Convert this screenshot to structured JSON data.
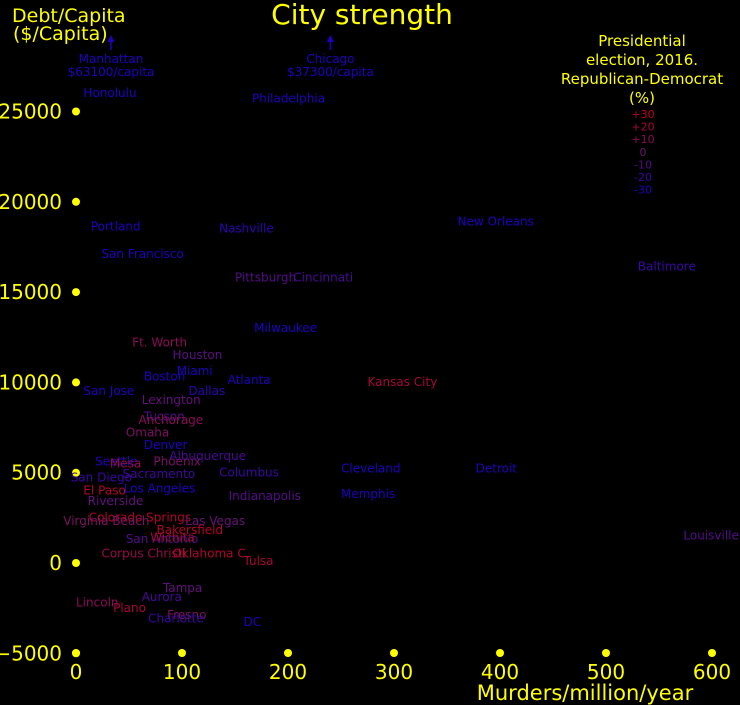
{
  "chart_data": {
    "type": "scatter",
    "title": "City strength",
    "xlabel": "Murders/million/year",
    "ylabel_lines": [
      "Debt/Capita",
      "($/Capita)"
    ],
    "xlim": [
      0,
      600
    ],
    "ylim": [
      -5000,
      27500
    ],
    "x_ticks": [
      0,
      100,
      200,
      300,
      400,
      500,
      600
    ],
    "y_ticks": [
      -5000,
      0,
      5000,
      10000,
      15000,
      20000,
      25000
    ],
    "grid": false,
    "legend": {
      "placement": "top-right",
      "title_lines": [
        "Presidential",
        "election, 2016.",
        "Republican-Democrat",
        "(%)"
      ],
      "entries": [
        {
          "label": "+30",
          "margin": 30
        },
        {
          "label": "+20",
          "margin": 20
        },
        {
          "label": "+10",
          "margin": 10
        },
        {
          "label": "0",
          "margin": 0
        },
        {
          "label": "-10",
          "margin": -10
        },
        {
          "label": "-20",
          "margin": -20
        },
        {
          "label": "-30",
          "margin": -30
        }
      ]
    },
    "offchart": [
      {
        "name": "Manhattan",
        "note": "$63100/capita",
        "x": 33
      },
      {
        "name": "Chicago",
        "note": "$37300/capita",
        "x": 240
      }
    ],
    "points": [
      {
        "name": "Honolulu",
        "x": 7,
        "y": 25800,
        "margin": -32
      },
      {
        "name": "Philadelphia",
        "x": 166,
        "y": 25500,
        "margin": -30
      },
      {
        "name": "Portland",
        "x": 14,
        "y": 18400,
        "margin": -38
      },
      {
        "name": "Nashville",
        "x": 135,
        "y": 18300,
        "margin": -25
      },
      {
        "name": "New Orleans",
        "x": 360,
        "y": 18700,
        "margin": -40
      },
      {
        "name": "San Francisco",
        "x": 24,
        "y": 16900,
        "margin": -40
      },
      {
        "name": "Pittsburgh",
        "x": 150,
        "y": 15600,
        "margin": -10
      },
      {
        "name": "Cincinnati",
        "x": 205,
        "y": 15600,
        "margin": -15
      },
      {
        "name": "Baltimore",
        "x": 530,
        "y": 16200,
        "margin": -20
      },
      {
        "name": "Milwaukee",
        "x": 168,
        "y": 12800,
        "margin": -38
      },
      {
        "name": "Ft. Worth",
        "x": 53,
        "y": 12000,
        "margin": 10
      },
      {
        "name": "Houston",
        "x": 91,
        "y": 11300,
        "margin": -8
      },
      {
        "name": "Miami",
        "x": 95,
        "y": 10400,
        "margin": -30
      },
      {
        "name": "Boston",
        "x": 64,
        "y": 10100,
        "margin": -35
      },
      {
        "name": "Atlanta",
        "x": 143,
        "y": 9900,
        "margin": -36
      },
      {
        "name": "San Jose",
        "x": 7,
        "y": 9300,
        "margin": -35
      },
      {
        "name": "Dallas",
        "x": 106,
        "y": 9300,
        "margin": -25
      },
      {
        "name": "Kansas City",
        "x": 275,
        "y": 9800,
        "margin": 20
      },
      {
        "name": "Lexington",
        "x": 62,
        "y": 8800,
        "margin": -5
      },
      {
        "name": "Tucson",
        "x": 64,
        "y": 7900,
        "margin": -10
      },
      {
        "name": "Anchorage",
        "x": 59,
        "y": 7700,
        "margin": 10
      },
      {
        "name": "Omaha",
        "x": 47,
        "y": 7000,
        "margin": 5
      },
      {
        "name": "Denver",
        "x": 64,
        "y": 6300,
        "margin": -30
      },
      {
        "name": "Albuquerque",
        "x": 88,
        "y": 5700,
        "margin": -15
      },
      {
        "name": "Phoenix",
        "x": 73,
        "y": 5400,
        "margin": 3
      },
      {
        "name": "Seattle",
        "x": 18,
        "y": 5400,
        "margin": -45
      },
      {
        "name": "Mesa",
        "x": 32,
        "y": 5300,
        "margin": 15
      },
      {
        "name": "Columbus",
        "x": 135,
        "y": 4800,
        "margin": -20
      },
      {
        "name": "Cleveland",
        "x": 250,
        "y": 5000,
        "margin": -32
      },
      {
        "name": "Detroit",
        "x": 377,
        "y": 5000,
        "margin": -35
      },
      {
        "name": "Sacramento",
        "x": 44,
        "y": 4700,
        "margin": -18
      },
      {
        "name": "San Diego",
        "x": -5,
        "y": 4500,
        "margin": -20
      },
      {
        "name": "Los Angeles",
        "x": 45,
        "y": 3900,
        "margin": -35
      },
      {
        "name": "El Paso",
        "x": 7,
        "y": 3800,
        "margin": 25
      },
      {
        "name": "Indianapolis",
        "x": 144,
        "y": 3500,
        "margin": -10
      },
      {
        "name": "Memphis",
        "x": 250,
        "y": 3600,
        "margin": -30
      },
      {
        "name": "Riverside",
        "x": 11,
        "y": 3200,
        "margin": -5
      },
      {
        "name": "Colorado Springs",
        "x": 12,
        "y": 2300,
        "margin": 25
      },
      {
        "name": "Virginia Beach",
        "x": -12,
        "y": 2100,
        "margin": 5
      },
      {
        "name": "Las Vegas",
        "x": 103,
        "y": 2100,
        "margin": -3
      },
      {
        "name": "Bakersfield",
        "x": 76,
        "y": 1600,
        "margin": 25
      },
      {
        "name": "San Antonio",
        "x": 47,
        "y": 1100,
        "margin": -10
      },
      {
        "name": "Wichita",
        "x": 70,
        "y": 1200,
        "margin": 20
      },
      {
        "name": "Louisville",
        "x": 573,
        "y": 1300,
        "margin": -10
      },
      {
        "name": "Corpus Christi",
        "x": 24,
        "y": 300,
        "margin": 15
      },
      {
        "name": "Oklahoma C.",
        "x": 91,
        "y": 300,
        "margin": 25
      },
      {
        "name": "Tulsa",
        "x": 158,
        "y": -100,
        "margin": 22
      },
      {
        "name": "Tampa",
        "x": 82,
        "y": -1600,
        "margin": -5
      },
      {
        "name": "Aurora",
        "x": 62,
        "y": -2100,
        "margin": -15
      },
      {
        "name": "Lincoln",
        "x": 0,
        "y": -2400,
        "margin": 10
      },
      {
        "name": "Plano",
        "x": 35,
        "y": -2700,
        "margin": 20
      },
      {
        "name": "Fresno",
        "x": 86,
        "y": -3100,
        "margin": 5
      },
      {
        "name": "Charlotte",
        "x": 68,
        "y": -3300,
        "margin": -20
      },
      {
        "name": "DC",
        "x": 158,
        "y": -3500,
        "margin": -90
      }
    ]
  }
}
